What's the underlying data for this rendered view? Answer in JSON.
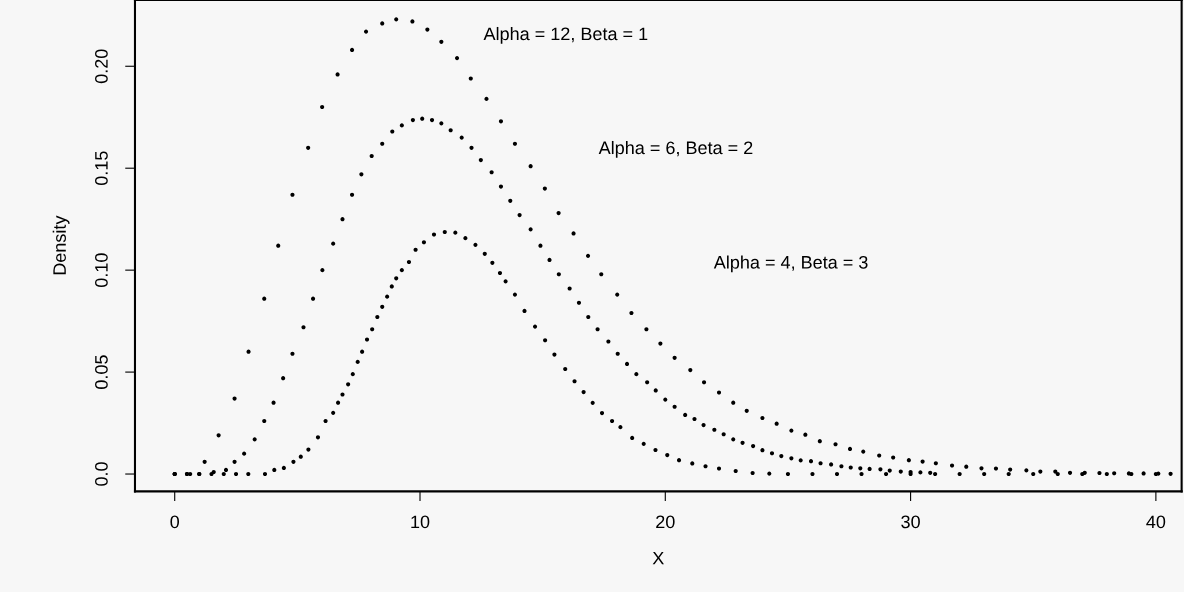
{
  "chart_data": {
    "type": "scatter",
    "xlabel": "X",
    "ylabel": "Density",
    "marker": "circle",
    "grid": false,
    "legend": false,
    "xlim": [
      -1.62,
      41.05
    ],
    "ylim": [
      -0.0085,
      0.2325
    ],
    "xticks": [
      0,
      10,
      20,
      30,
      40
    ],
    "yticks": [
      {
        "value": 0,
        "label": "0.0"
      },
      0.05,
      {
        "value": 0.1,
        "label": "0.10"
      },
      0.15,
      {
        "value": 0.2,
        "label": "0.20"
      }
    ],
    "annotations": [
      "Alpha = 12, Beta = 1",
      "Alpha = 6, Beta = 2",
      "Alpha = 4, Beta = 3"
    ],
    "series": [
      {
        "color": "#000000",
        "x": [
          0,
          0.63,
          1.22,
          1.79,
          2.44,
          3.01,
          3.65,
          4.22,
          4.8,
          5.44,
          6.01,
          6.64,
          7.23,
          7.8,
          8.46,
          9.03,
          9.69,
          10.3,
          10.87,
          11.51,
          12.07,
          12.71,
          13.3,
          13.87,
          14.51,
          15.09,
          15.65,
          16.26,
          16.85,
          17.39,
          18.04,
          18.62,
          19.23,
          19.8,
          20.38,
          21.02,
          21.58,
          22.19,
          22.77,
          23.32,
          23.96,
          24.54,
          25.14,
          25.71,
          26.3,
          26.94,
          27.53,
          28.07,
          28.72,
          29.29,
          29.93,
          30.49,
          31.03,
          31.69,
          32.27,
          32.89,
          33.48,
          34.06,
          34.72,
          35.29,
          35.9,
          36.5,
          37.1,
          37.7,
          38.3,
          38.9,
          39.5,
          40.1,
          40.6
        ],
        "values": [
          0,
          0,
          0.006,
          0.019,
          0.037,
          0.06,
          0.086,
          0.112,
          0.137,
          0.16,
          0.18,
          0.196,
          0.208,
          0.217,
          0.221,
          0.223,
          0.222,
          0.218,
          0.212,
          0.204,
          0.194,
          0.184,
          0.173,
          0.162,
          0.151,
          0.14,
          0.128,
          0.118,
          0.107,
          0.098,
          0.088,
          0.079,
          0.071,
          0.064,
          0.057,
          0.051,
          0.045,
          0.04,
          0.035,
          0.031,
          0.0275,
          0.0247,
          0.0213,
          0.0193,
          0.0161,
          0.0146,
          0.0123,
          0.011,
          0.0091,
          0.0081,
          0.0068,
          0.0061,
          0.0053,
          0.0042,
          0.0036,
          0.0028,
          0.0027,
          0.0022,
          0.0018,
          0.0012,
          0.0012,
          0.0006,
          0.0006,
          0.0005,
          0.0004,
          0.0003,
          0.0003,
          0.0002,
          0.0001
        ]
      },
      {
        "color": "#000000",
        "x": [
          0,
          0.5,
          1.0,
          1.59,
          2.09,
          2.44,
          2.83,
          3.26,
          3.65,
          4.03,
          4.42,
          4.8,
          5.25,
          5.64,
          6.02,
          6.46,
          6.84,
          7.23,
          7.61,
          8.03,
          8.46,
          8.87,
          9.26,
          9.71,
          10.09,
          10.49,
          10.87,
          11.25,
          11.7,
          12.1,
          12.48,
          12.92,
          13.3,
          13.68,
          14.06,
          14.51,
          14.91,
          15.28,
          15.66,
          16.1,
          16.48,
          16.86,
          17.24,
          17.68,
          18.06,
          18.44,
          18.82,
          19.26,
          19.61,
          20.0,
          20.38,
          20.81,
          21.19,
          21.56,
          22.0,
          22.38,
          22.77,
          23.15,
          23.58,
          23.96,
          24.35,
          24.73,
          25.14,
          25.52,
          25.94,
          26.33,
          26.76,
          27.18,
          27.56,
          27.95,
          28.33,
          28.77,
          29.15,
          29.6,
          30.0,
          30.4,
          30.8
        ],
        "values": [
          0,
          0,
          0,
          0.001,
          0.002,
          0.006,
          0.01,
          0.017,
          0.026,
          0.035,
          0.047,
          0.059,
          0.072,
          0.086,
          0.1,
          0.113,
          0.125,
          0.137,
          0.147,
          0.156,
          0.162,
          0.168,
          0.171,
          0.1736,
          0.1743,
          0.1736,
          0.172,
          0.1686,
          0.165,
          0.16,
          0.154,
          0.148,
          0.141,
          0.134,
          0.127,
          0.12,
          0.112,
          0.105,
          0.098,
          0.091,
          0.084,
          0.077,
          0.071,
          0.065,
          0.059,
          0.054,
          0.049,
          0.045,
          0.041,
          0.0365,
          0.033,
          0.029,
          0.027,
          0.024,
          0.0217,
          0.0195,
          0.017,
          0.0153,
          0.0137,
          0.0117,
          0.0102,
          0.0088,
          0.0077,
          0.0067,
          0.0063,
          0.0053,
          0.0047,
          0.0038,
          0.0032,
          0.0028,
          0.0025,
          0.0023,
          0.0017,
          0.0012,
          0.001,
          0.0008,
          0.0006
        ]
      },
      {
        "color": "#000000",
        "x": [
          0,
          0.5,
          1.0,
          1.5,
          2.0,
          2.5,
          3.0,
          3.68,
          4.06,
          4.45,
          4.84,
          5.14,
          5.45,
          5.84,
          6.15,
          6.46,
          6.66,
          6.84,
          7.07,
          7.26,
          7.46,
          7.64,
          7.84,
          8.05,
          8.26,
          8.46,
          8.66,
          8.85,
          9.03,
          9.26,
          9.55,
          9.82,
          10.16,
          10.57,
          11.01,
          11.44,
          11.85,
          12.26,
          12.64,
          12.95,
          13.26,
          13.49,
          13.87,
          14.26,
          14.69,
          15.1,
          15.48,
          15.92,
          16.3,
          16.67,
          17.04,
          17.42,
          17.83,
          18.17,
          18.65,
          19.12,
          19.6,
          20.08,
          20.56,
          21.1,
          21.64,
          22.19,
          22.87,
          23.56,
          24.24,
          25.0,
          26.0,
          27.0,
          28.0,
          29.0,
          30.0,
          31.0,
          32.0,
          33.0,
          34.0,
          35.0,
          36.0,
          37.0,
          38.0,
          39.0,
          40.0
        ],
        "values": [
          0,
          0,
          0,
          0,
          0,
          0,
          0,
          0,
          0.002,
          0.003,
          0.006,
          0.0085,
          0.012,
          0.018,
          0.026,
          0.03,
          0.035,
          0.039,
          0.044,
          0.049,
          0.055,
          0.06,
          0.066,
          0.071,
          0.077,
          0.082,
          0.087,
          0.092,
          0.096,
          0.1,
          0.104,
          0.11,
          0.1137,
          0.1175,
          0.1187,
          0.1184,
          0.1157,
          0.1124,
          0.108,
          0.1036,
          0.0986,
          0.0945,
          0.088,
          0.08,
          0.0723,
          0.0656,
          0.0586,
          0.0515,
          0.0455,
          0.0402,
          0.0349,
          0.0299,
          0.026,
          0.023,
          0.0177,
          0.0148,
          0.0118,
          0.0093,
          0.0068,
          0.0052,
          0.0038,
          0.0027,
          0.0015,
          0.0005,
          0.0002,
          0,
          0,
          0,
          0,
          0,
          0,
          0,
          0,
          0,
          0,
          0,
          0,
          0,
          0,
          0,
          0
        ]
      }
    ]
  }
}
